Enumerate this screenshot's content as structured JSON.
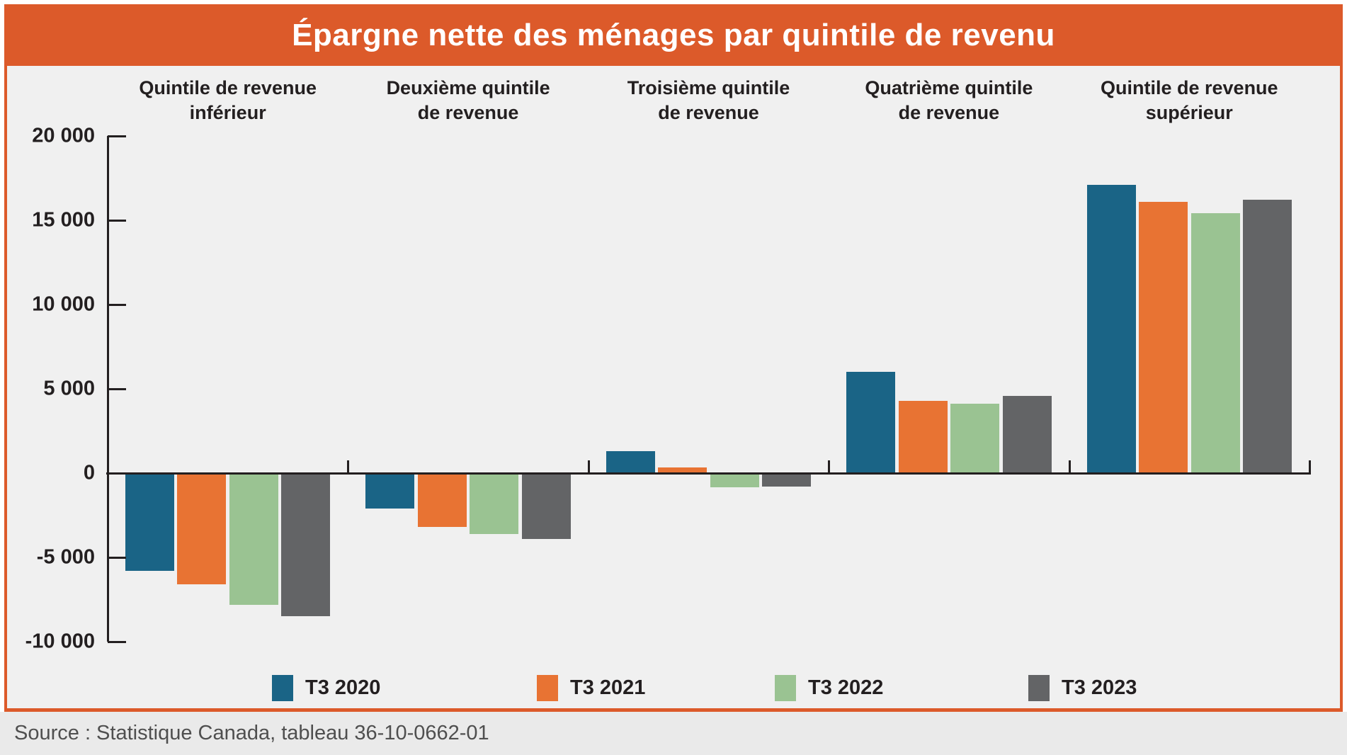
{
  "header": {
    "title": "Épargne nette des ménages par quintile de revenu"
  },
  "colors": {
    "header_band": "#dc5a2a",
    "box_border": "#dc5a2a",
    "chart_background": "#f0f0f0",
    "source_background": "#eaeaea",
    "axis": "#231f20",
    "source_text": "#4f4f4f"
  },
  "chart_data": {
    "type": "bar",
    "title": "Épargne nette des ménages par quintile de revenu",
    "categories": [
      "Quintile de revenue\ninférieur",
      "Deuxième quintile\nde revenue",
      "Troisième quintile\nde revenue",
      "Quatrième quintile\nde revenue",
      "Quintile de revenue\nsupérieur"
    ],
    "series": [
      {
        "name": "T3 2020",
        "color": "#1a6486",
        "values": [
          -5800,
          -2100,
          1300,
          6000,
          17100
        ]
      },
      {
        "name": "T3 2021",
        "color": "#e87333",
        "values": [
          -6600,
          -3200,
          350,
          4300,
          16100
        ]
      },
      {
        "name": "T3 2022",
        "color": "#9ac392",
        "values": [
          -7800,
          -3600,
          -850,
          4100,
          15400
        ]
      },
      {
        "name": "T3 2023",
        "color": "#636466",
        "values": [
          -8500,
          -3900,
          -800,
          4600,
          16200
        ]
      }
    ],
    "ylim": [
      -10000,
      20000
    ],
    "yticks": [
      {
        "value": 20000,
        "label": "20 000"
      },
      {
        "value": 15000,
        "label": "15 000"
      },
      {
        "value": 10000,
        "label": "10 000"
      },
      {
        "value": 5000,
        "label": "5 000"
      },
      {
        "value": 0,
        "label": "0"
      },
      {
        "value": -5000,
        "label": "-5 000"
      },
      {
        "value": -10000,
        "label": "-10 000"
      }
    ],
    "grid": false,
    "legend_position": "bottom"
  },
  "source": {
    "text": "Source : Statistique Canada, tableau 36-10-0662-01"
  }
}
